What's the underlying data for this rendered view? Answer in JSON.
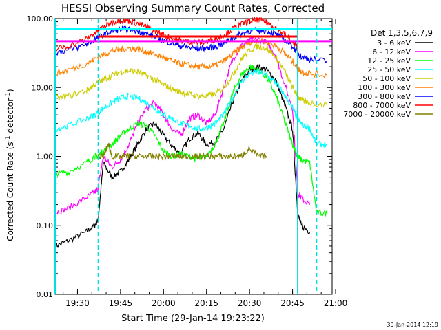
{
  "chart_data": {
    "type": "line",
    "title": "HESSI Observing Summary Count Rates, Corrected",
    "xlabel": "Start Time (29-Jan-14 19:23:22)",
    "ylabel_main": "Corrected Count Rate (s",
    "ylabel_sup1": "-1",
    "ylabel_mid": " detector",
    "ylabel_sup2": "-1",
    "ylabel_end": ")",
    "yscale": "log",
    "ylim": [
      0.01,
      100
    ],
    "xlim_minutes": [
      19.37,
      20.98
    ],
    "x_ticks": [
      "19:30",
      "19:45",
      "20:00",
      "20:15",
      "20:30",
      "20:45",
      "21:00"
    ],
    "x_tick_values": [
      19.5,
      19.75,
      20.0,
      20.25,
      20.5,
      20.75,
      21.0
    ],
    "y_ticks": [
      "0.01",
      "0.10",
      "1.00",
      "10.00",
      "100.00"
    ],
    "y_tick_values": [
      0.01,
      0.1,
      1,
      10,
      100
    ],
    "legend_title": "Det 1,3,5,6,7,9",
    "legend_placement": "right",
    "timestamp": "30-Jan-2014 12:19",
    "vlines_solid": [
      19.37,
      20.78
    ],
    "vlines_dashed": [
      19.62,
      20.89
    ],
    "series": [
      {
        "name": "3 - 6 keV",
        "color": "#000000",
        "x": [
          19.37,
          19.45,
          19.55,
          19.6,
          19.62,
          19.65,
          19.7,
          19.75,
          19.8,
          19.85,
          19.9,
          19.95,
          20.0,
          20.05,
          20.1,
          20.15,
          20.2,
          20.25,
          20.3,
          20.35,
          20.4,
          20.45,
          20.5,
          20.55,
          20.6,
          20.65,
          20.7,
          20.75,
          20.78,
          20.8,
          20.85
        ],
        "y": [
          0.05,
          0.06,
          0.08,
          0.1,
          0.12,
          0.8,
          0.5,
          0.6,
          0.9,
          1.5,
          2.5,
          3.0,
          2.0,
          1.4,
          1.1,
          1.8,
          2.2,
          1.5,
          1.6,
          2.5,
          6.0,
          12.0,
          18.0,
          20.0,
          18.0,
          13.0,
          6.0,
          2.5,
          0.15,
          0.1,
          0.08
        ]
      },
      {
        "name": "6 - 12 keV",
        "color": "#ff00ff",
        "x": [
          19.37,
          19.45,
          19.55,
          19.6,
          19.62,
          19.65,
          19.7,
          19.75,
          19.8,
          19.85,
          19.9,
          19.95,
          20.0,
          20.05,
          20.1,
          20.15,
          20.2,
          20.25,
          20.3,
          20.35,
          20.4,
          20.45,
          20.5,
          20.55,
          20.6,
          20.65,
          20.7,
          20.75,
          20.78,
          20.8,
          20.85
        ],
        "y": [
          0.15,
          0.18,
          0.25,
          0.3,
          0.35,
          1.0,
          0.7,
          0.9,
          1.5,
          3.0,
          5.0,
          6.0,
          4.0,
          2.5,
          2.0,
          3.5,
          4.0,
          3.0,
          4.0,
          10.0,
          25.0,
          40.0,
          48.0,
          50.0,
          45.0,
          30.0,
          12.0,
          5.0,
          0.3,
          0.25,
          0.2
        ]
      },
      {
        "name": "12 - 25 keV",
        "color": "#00ff00",
        "x": [
          19.37,
          19.45,
          19.55,
          19.6,
          19.62,
          19.65,
          19.7,
          19.75,
          19.8,
          19.85,
          19.9,
          19.95,
          20.0,
          20.05,
          20.1,
          20.15,
          20.2,
          20.25,
          20.3,
          20.35,
          20.4,
          20.45,
          20.5,
          20.55,
          20.6,
          20.65,
          20.7,
          20.75,
          20.78,
          20.8,
          20.85,
          20.89,
          20.95
        ],
        "y": [
          0.55,
          0.6,
          0.8,
          1.0,
          1.0,
          1.2,
          1.5,
          2.0,
          2.5,
          3.0,
          2.8,
          2.0,
          1.2,
          1.0,
          1.1,
          1.0,
          0.9,
          1.0,
          1.5,
          3.0,
          8.0,
          15.0,
          20.0,
          18.0,
          14.0,
          8.0,
          3.5,
          1.5,
          1.0,
          0.9,
          0.8,
          0.15,
          0.15
        ]
      },
      {
        "name": "25 - 50 keV",
        "color": "#00ffff",
        "x": [
          19.37,
          19.45,
          19.55,
          19.6,
          19.65,
          19.7,
          19.75,
          19.8,
          19.85,
          19.9,
          19.95,
          20.0,
          20.05,
          20.1,
          20.15,
          20.2,
          20.25,
          20.3,
          20.35,
          20.4,
          20.45,
          20.5,
          20.55,
          20.6,
          20.65,
          20.7,
          20.75,
          20.78,
          20.8,
          20.85,
          20.89,
          20.95
        ],
        "y": [
          2.5,
          2.8,
          3.5,
          4.0,
          5.0,
          6.0,
          7.0,
          7.5,
          7.0,
          6.0,
          5.0,
          4.0,
          3.5,
          3.0,
          2.8,
          2.5,
          2.6,
          3.0,
          4.0,
          7.0,
          12.0,
          16.0,
          17.0,
          15.0,
          12.0,
          8.0,
          5.0,
          3.5,
          3.0,
          2.5,
          1.5,
          1.5
        ]
      },
      {
        "name": "50 - 100 keV",
        "color": "#cccc00",
        "x": [
          19.37,
          19.45,
          19.55,
          19.6,
          19.65,
          19.7,
          19.75,
          19.8,
          19.85,
          19.9,
          19.95,
          20.0,
          20.05,
          20.1,
          20.15,
          20.2,
          20.25,
          20.3,
          20.35,
          20.4,
          20.45,
          20.5,
          20.55,
          20.6,
          20.65,
          20.7,
          20.75,
          20.78,
          20.8,
          20.85,
          20.95
        ],
        "y": [
          7.0,
          7.5,
          9.0,
          11.0,
          13.0,
          15.0,
          17.0,
          17.5,
          17.0,
          15.0,
          13.0,
          11.0,
          9.5,
          8.5,
          8.0,
          7.5,
          7.5,
          8.0,
          10.0,
          15.0,
          25.0,
          35.0,
          40.0,
          37.0,
          28.0,
          18.0,
          10.0,
          7.5,
          6.5,
          6.0,
          5.5
        ]
      },
      {
        "name": "100 - 300 keV",
        "color": "#ff8000",
        "x": [
          19.37,
          19.45,
          19.55,
          19.6,
          19.65,
          19.7,
          19.75,
          19.8,
          19.85,
          19.9,
          19.95,
          20.0,
          20.05,
          20.1,
          20.15,
          20.2,
          20.25,
          20.3,
          20.35,
          20.4,
          20.45,
          20.5,
          20.55,
          20.6,
          20.65,
          20.7,
          20.75,
          20.78,
          20.8,
          20.85,
          20.95
        ],
        "y": [
          16.0,
          18.0,
          22.0,
          26.0,
          30.0,
          34.0,
          36.0,
          37.0,
          36.0,
          33.0,
          30.0,
          27.0,
          24.0,
          22.0,
          21.0,
          20.0,
          20.0,
          21.0,
          24.0,
          30.0,
          38.0,
          45.0,
          48.0,
          46.0,
          40.0,
          32.0,
          24.0,
          19.0,
          17.0,
          16.0,
          15.0
        ]
      },
      {
        "name": "300 - 800 keV",
        "color": "#0000ff",
        "x": [
          19.37,
          19.45,
          19.55,
          19.6,
          19.65,
          19.7,
          19.75,
          19.8,
          19.85,
          19.9,
          19.95,
          20.0,
          20.05,
          20.1,
          20.15,
          20.2,
          20.25,
          20.3,
          20.35,
          20.4,
          20.45,
          20.5,
          20.55,
          20.6,
          20.65,
          20.7,
          20.75,
          20.78,
          20.8,
          20.85,
          20.95
        ],
        "y": [
          32.0,
          35.0,
          42.0,
          50.0,
          58.0,
          66.0,
          70.0,
          70.0,
          66.0,
          60.0,
          54.0,
          48.0,
          44.0,
          40.0,
          38.0,
          37.0,
          37.0,
          39.0,
          44.0,
          52.0,
          60.0,
          66.0,
          68.0,
          66.0,
          60.0,
          50.0,
          40.0,
          32.0,
          28.0,
          26.0,
          24.0
        ]
      },
      {
        "name": "800 - 7000 keV",
        "color": "#ff0000",
        "x": [
          19.37,
          19.45,
          19.55,
          19.6,
          19.65,
          19.7,
          19.75,
          19.8,
          19.85,
          19.9,
          19.95,
          20.0,
          20.05,
          20.1,
          20.15,
          20.2,
          20.25,
          20.3,
          20.35,
          20.4,
          20.45,
          20.5,
          20.55,
          20.6,
          20.65,
          20.7,
          20.75,
          20.78
        ],
        "y": [
          36.0,
          40.0,
          50.0,
          62.0,
          75.0,
          88.0,
          95.0,
          92.0,
          85.0,
          76.0,
          66.0,
          58.0,
          52.0,
          48.0,
          46.0,
          45.0,
          46.0,
          50.0,
          58.0,
          70.0,
          82.0,
          92.0,
          95.0,
          88.0,
          75.0,
          60.0,
          45.0,
          38.0
        ]
      },
      {
        "name": "7000 - 20000 keV",
        "color": "#808000",
        "x": [
          19.62,
          19.65,
          19.68,
          19.7,
          19.75,
          19.8,
          19.85,
          19.9,
          19.95,
          20.0,
          20.05,
          20.1,
          20.15,
          20.2,
          20.25,
          20.3,
          20.35,
          20.4,
          20.45,
          20.5,
          20.55,
          20.6
        ],
        "y": [
          1.0,
          1.0,
          1.5,
          1.0,
          1.0,
          1.0,
          1.0,
          1.0,
          1.0,
          1.0,
          1.0,
          1.0,
          1.0,
          1.0,
          1.0,
          1.0,
          1.0,
          1.0,
          1.0,
          1.3,
          1.0,
          1.0
        ]
      }
    ],
    "hlines": [
      {
        "color": "#00ffff",
        "y": 70,
        "x1": 19.37,
        "x2": 20.98
      },
      {
        "color": "#ff0000",
        "y": 55,
        "x1": 19.62,
        "x2": 20.78
      },
      {
        "color": "#ff00ff",
        "y": 47,
        "x1": 19.37,
        "x2": 20.98
      }
    ]
  }
}
